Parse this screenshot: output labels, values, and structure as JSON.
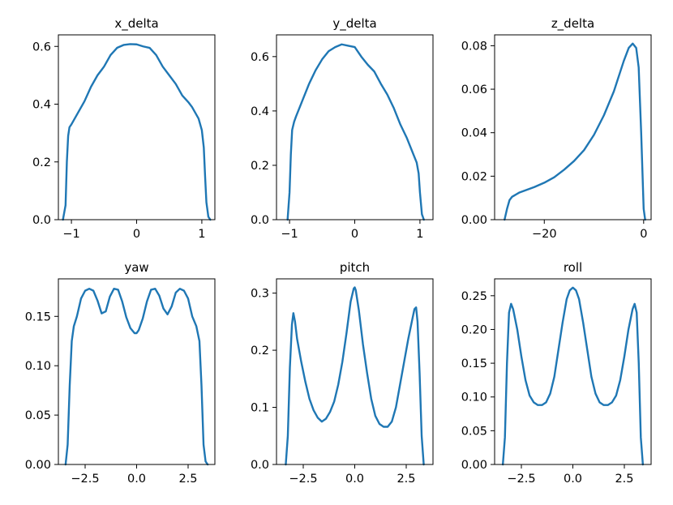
{
  "chart_data": [
    {
      "type": "line",
      "title": "x_delta",
      "xlim": [
        -1.2,
        1.2
      ],
      "ylim": [
        0,
        0.64
      ],
      "xticks": [
        -1,
        0,
        1
      ],
      "xtick_labels": [
        "−1",
        "0",
        "1"
      ],
      "yticks": [
        0.0,
        0.2,
        0.4,
        0.6
      ],
      "ytick_labels": [
        "0.0",
        "0.2",
        "0.4",
        "0.6"
      ],
      "color": "#1f77b4",
      "x": [
        -1.13,
        -1.09,
        -1.07,
        -1.05,
        -1.03,
        -1.0,
        -0.95,
        -0.9,
        -0.85,
        -0.8,
        -0.7,
        -0.6,
        -0.5,
        -0.4,
        -0.3,
        -0.2,
        -0.1,
        0.0,
        0.1,
        0.2,
        0.3,
        0.4,
        0.5,
        0.6,
        0.7,
        0.8,
        0.85,
        0.9,
        0.95,
        1.0,
        1.03,
        1.05,
        1.07,
        1.1,
        1.13
      ],
      "y": [
        0.0,
        0.05,
        0.2,
        0.29,
        0.32,
        0.33,
        0.35,
        0.37,
        0.39,
        0.41,
        0.46,
        0.5,
        0.53,
        0.57,
        0.595,
        0.605,
        0.608,
        0.607,
        0.6,
        0.595,
        0.57,
        0.53,
        0.5,
        0.47,
        0.43,
        0.405,
        0.39,
        0.37,
        0.35,
        0.31,
        0.25,
        0.15,
        0.06,
        0.01,
        0.0
      ]
    },
    {
      "type": "line",
      "title": "y_delta",
      "xlim": [
        -1.2,
        1.2
      ],
      "ylim": [
        0,
        0.68
      ],
      "xticks": [
        -1,
        0,
        1
      ],
      "xtick_labels": [
        "−1",
        "0",
        "1"
      ],
      "yticks": [
        0.0,
        0.2,
        0.4,
        0.6
      ],
      "ytick_labels": [
        "0.0",
        "0.2",
        "0.4",
        "0.6"
      ],
      "color": "#1f77b4",
      "x": [
        -1.03,
        -1.0,
        -0.98,
        -0.96,
        -0.93,
        -0.9,
        -0.8,
        -0.7,
        -0.6,
        -0.5,
        -0.4,
        -0.3,
        -0.2,
        -0.1,
        0.0,
        0.1,
        0.2,
        0.3,
        0.4,
        0.5,
        0.6,
        0.7,
        0.8,
        0.9,
        0.95,
        0.98,
        1.0,
        1.03,
        1.06
      ],
      "y": [
        0.0,
        0.1,
        0.24,
        0.33,
        0.36,
        0.38,
        0.44,
        0.5,
        0.55,
        0.59,
        0.62,
        0.635,
        0.645,
        0.64,
        0.635,
        0.6,
        0.57,
        0.545,
        0.5,
        0.46,
        0.41,
        0.35,
        0.3,
        0.24,
        0.21,
        0.17,
        0.1,
        0.02,
        0.0
      ]
    },
    {
      "type": "line",
      "title": "z_delta",
      "xlim": [
        -30,
        1.5
      ],
      "ylim": [
        0,
        0.085
      ],
      "xticks": [
        -20,
        0
      ],
      "xtick_labels": [
        "−20",
        "0"
      ],
      "yticks": [
        0.0,
        0.02,
        0.04,
        0.06,
        0.08
      ],
      "ytick_labels": [
        "0.00",
        "0.02",
        "0.04",
        "0.06",
        "0.08"
      ],
      "color": "#1f77b4",
      "x": [
        -28.0,
        -27.5,
        -27.0,
        -26.5,
        -25,
        -22,
        -20,
        -18,
        -16,
        -14,
        -12,
        -10,
        -8,
        -6,
        -4,
        -3,
        -2.2,
        -1.5,
        -1,
        -0.5,
        0.0,
        0.3
      ],
      "y": [
        0.0,
        0.005,
        0.009,
        0.0105,
        0.0125,
        0.015,
        0.017,
        0.0195,
        0.023,
        0.027,
        0.032,
        0.039,
        0.048,
        0.059,
        0.073,
        0.079,
        0.081,
        0.079,
        0.07,
        0.04,
        0.005,
        0.0
      ]
    },
    {
      "type": "line",
      "title": "yaw",
      "xlim": [
        -3.8,
        3.8
      ],
      "ylim": [
        0,
        0.188
      ],
      "xticks": [
        -2.5,
        0.0,
        2.5
      ],
      "xtick_labels": [
        "−2.5",
        "0.0",
        "2.5"
      ],
      "yticks": [
        0.0,
        0.05,
        0.1,
        0.15
      ],
      "ytick_labels": [
        "0.00",
        "0.05",
        "0.10",
        "0.15"
      ],
      "color": "#1f77b4",
      "x": [
        -3.45,
        -3.35,
        -3.25,
        -3.15,
        -3.05,
        -2.9,
        -2.7,
        -2.5,
        -2.3,
        -2.1,
        -1.9,
        -1.7,
        -1.5,
        -1.3,
        -1.1,
        -0.9,
        -0.7,
        -0.5,
        -0.3,
        -0.1,
        0.0,
        0.1,
        0.3,
        0.5,
        0.7,
        0.9,
        1.1,
        1.3,
        1.5,
        1.7,
        1.9,
        2.1,
        2.3,
        2.5,
        2.7,
        2.9,
        3.05,
        3.15,
        3.25,
        3.35,
        3.45
      ],
      "y": [
        0.0,
        0.02,
        0.08,
        0.125,
        0.14,
        0.15,
        0.168,
        0.176,
        0.178,
        0.176,
        0.166,
        0.153,
        0.155,
        0.17,
        0.178,
        0.177,
        0.165,
        0.149,
        0.138,
        0.133,
        0.133,
        0.136,
        0.148,
        0.165,
        0.177,
        0.178,
        0.171,
        0.158,
        0.152,
        0.16,
        0.174,
        0.178,
        0.176,
        0.168,
        0.15,
        0.14,
        0.125,
        0.08,
        0.02,
        0.003,
        0.0
      ]
    },
    {
      "type": "line",
      "title": "pitch",
      "xlim": [
        -3.8,
        3.8
      ],
      "ylim": [
        0,
        0.325
      ],
      "xticks": [
        -2.5,
        0.0,
        2.5
      ],
      "xtick_labels": [
        "−2.5",
        "0.0",
        "2.5"
      ],
      "yticks": [
        0.0,
        0.1,
        0.2,
        0.3
      ],
      "ytick_labels": [
        "0.0",
        "0.1",
        "0.2",
        "0.3"
      ],
      "color": "#1f77b4",
      "x": [
        -3.35,
        -3.25,
        -3.15,
        -3.05,
        -2.98,
        -2.9,
        -2.8,
        -2.6,
        -2.4,
        -2.2,
        -2.0,
        -1.8,
        -1.6,
        -1.4,
        -1.2,
        -1.0,
        -0.8,
        -0.6,
        -0.4,
        -0.2,
        -0.05,
        0.0,
        0.05,
        0.2,
        0.4,
        0.6,
        0.8,
        1.0,
        1.2,
        1.4,
        1.6,
        1.8,
        2.0,
        2.2,
        2.4,
        2.6,
        2.8,
        2.9,
        2.98,
        3.05,
        3.15,
        3.25,
        3.35
      ],
      "y": [
        0.0,
        0.05,
        0.17,
        0.245,
        0.265,
        0.25,
        0.22,
        0.18,
        0.145,
        0.115,
        0.095,
        0.082,
        0.075,
        0.08,
        0.092,
        0.11,
        0.14,
        0.18,
        0.23,
        0.285,
        0.308,
        0.31,
        0.305,
        0.27,
        0.21,
        0.16,
        0.115,
        0.085,
        0.071,
        0.066,
        0.066,
        0.075,
        0.1,
        0.14,
        0.18,
        0.22,
        0.255,
        0.272,
        0.275,
        0.25,
        0.16,
        0.05,
        0.0
      ]
    },
    {
      "type": "line",
      "title": "roll",
      "xlim": [
        -3.8,
        3.8
      ],
      "ylim": [
        0,
        0.275
      ],
      "xticks": [
        -2.5,
        0.0,
        2.5
      ],
      "xtick_labels": [
        "−2.5",
        "0.0",
        "2.5"
      ],
      "yticks": [
        0.0,
        0.05,
        0.1,
        0.15,
        0.2,
        0.25
      ],
      "ytick_labels": [
        "0.00",
        "0.05",
        "0.10",
        "0.15",
        "0.20",
        "0.25"
      ],
      "color": "#1f77b4",
      "x": [
        -3.4,
        -3.3,
        -3.2,
        -3.1,
        -3.0,
        -2.9,
        -2.7,
        -2.5,
        -2.3,
        -2.1,
        -1.9,
        -1.7,
        -1.5,
        -1.3,
        -1.1,
        -0.9,
        -0.7,
        -0.5,
        -0.3,
        -0.15,
        0.0,
        0.15,
        0.3,
        0.5,
        0.7,
        0.9,
        1.1,
        1.3,
        1.5,
        1.7,
        1.9,
        2.1,
        2.3,
        2.5,
        2.7,
        2.9,
        3.0,
        3.1,
        3.2,
        3.3,
        3.4
      ],
      "y": [
        0.0,
        0.04,
        0.15,
        0.225,
        0.238,
        0.23,
        0.2,
        0.16,
        0.125,
        0.102,
        0.092,
        0.088,
        0.088,
        0.092,
        0.105,
        0.13,
        0.17,
        0.21,
        0.245,
        0.258,
        0.262,
        0.258,
        0.245,
        0.21,
        0.17,
        0.13,
        0.105,
        0.092,
        0.088,
        0.088,
        0.092,
        0.102,
        0.125,
        0.16,
        0.2,
        0.23,
        0.238,
        0.225,
        0.15,
        0.04,
        0.0
      ]
    }
  ]
}
